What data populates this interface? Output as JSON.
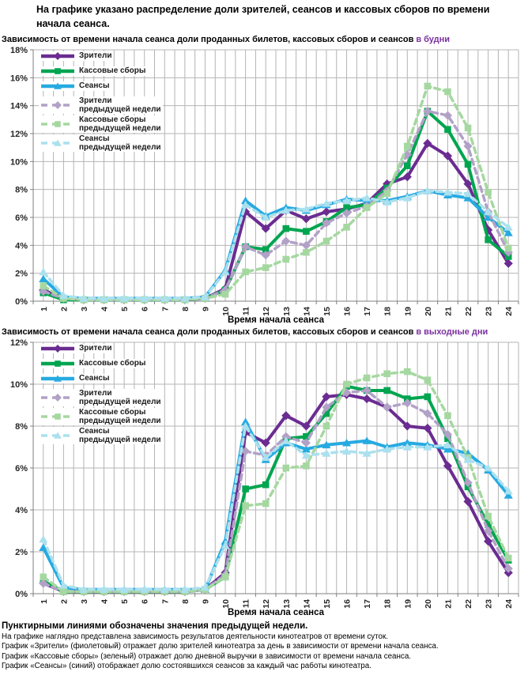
{
  "page_title": "На графике указано распределение доли зрителей, сеансов и кассовых сборов по времени начала сеанса.",
  "accent_color": "#7b2f9e",
  "chart_data": [
    {
      "type": "line",
      "subtitle": "Зависимость от времени начала сеанса доли проданных билетов, кассовых сборов и сеансов",
      "subtitle_highlight": "в будни",
      "xlabel": "Время начала сеанса",
      "ylim": [
        0,
        18
      ],
      "ytick_step": 2,
      "grid": "on",
      "legend_position": "top-left-inside",
      "x": [
        1,
        2,
        3,
        4,
        5,
        6,
        7,
        8,
        9,
        10,
        11,
        12,
        13,
        14,
        15,
        16,
        17,
        18,
        19,
        20,
        21,
        22,
        23,
        24
      ],
      "series": [
        {
          "id": "viewers",
          "label": [
            "Зрители"
          ],
          "color": "#6b2c91",
          "marker": "diamond",
          "dash": false,
          "values": [
            0.8,
            0.2,
            0.1,
            0.1,
            0.1,
            0.1,
            0.1,
            0.1,
            0.2,
            0.9,
            6.4,
            5.2,
            6.5,
            5.9,
            6.4,
            6.6,
            7.0,
            8.4,
            8.9,
            11.3,
            10.4,
            8.4,
            5.1,
            2.7
          ]
        },
        {
          "id": "box-office",
          "label": [
            "Кассовые сборы"
          ],
          "color": "#00a550",
          "marker": "square",
          "dash": false,
          "values": [
            0.6,
            0.1,
            0.1,
            0.1,
            0.1,
            0.1,
            0.1,
            0.1,
            0.2,
            0.8,
            3.9,
            3.7,
            5.2,
            5.0,
            5.7,
            6.7,
            6.9,
            8.1,
            9.7,
            13.6,
            12.3,
            9.8,
            4.4,
            3.2
          ]
        },
        {
          "id": "sessions",
          "label": [
            "Сеансы"
          ],
          "color": "#27aae1",
          "marker": "triangle",
          "dash": false,
          "values": [
            1.6,
            0.3,
            0.2,
            0.2,
            0.2,
            0.2,
            0.2,
            0.2,
            0.3,
            2.2,
            7.2,
            6.1,
            6.7,
            6.5,
            6.9,
            7.3,
            7.2,
            7.2,
            7.5,
            7.9,
            7.6,
            7.4,
            6.0,
            4.9
          ]
        },
        {
          "id": "viewers-prev",
          "label": [
            "Зрители",
            "предыдущей недели"
          ],
          "color": "#b2a1c7",
          "marker": "diamond",
          "dash": true,
          "values": [
            0.7,
            0.2,
            0.1,
            0.1,
            0.1,
            0.1,
            0.1,
            0.1,
            0.2,
            0.8,
            3.9,
            3.3,
            4.3,
            4.0,
            5.6,
            6.3,
            6.8,
            7.9,
            10.5,
            13.6,
            13.3,
            11.1,
            6.4,
            3.5
          ]
        },
        {
          "id": "box-office-prev",
          "label": [
            "Кассовые сборы",
            "предыдущей недели"
          ],
          "color": "#a5d8a0",
          "marker": "square",
          "dash": true,
          "values": [
            1.1,
            0.2,
            0.1,
            0.1,
            0.1,
            0.1,
            0.1,
            0.1,
            0.2,
            0.5,
            2.1,
            2.4,
            3.0,
            3.5,
            4.3,
            5.3,
            6.7,
            7.7,
            11.1,
            15.4,
            15.0,
            12.4,
            7.8,
            3.8
          ]
        },
        {
          "id": "sessions-prev",
          "label": [
            "Сеансы",
            "предыдущей недели"
          ],
          "color": "#abe0ee",
          "marker": "triangle",
          "dash": true,
          "values": [
            2.1,
            0.4,
            0.2,
            0.2,
            0.2,
            0.2,
            0.2,
            0.2,
            0.3,
            2.1,
            6.9,
            6.0,
            6.5,
            6.6,
            7.0,
            7.2,
            7.4,
            7.1,
            7.4,
            7.9,
            7.8,
            7.7,
            6.4,
            5.3
          ]
        }
      ]
    },
    {
      "type": "line",
      "subtitle": "Зависимость от времени начала сеанса доли проданных билетов, кассовых сборов и сеансов",
      "subtitle_highlight": "в выходные дни",
      "xlabel": "Время начала сеанса",
      "ylim": [
        0,
        12
      ],
      "ytick_step": 2,
      "grid": "on",
      "legend_position": "top-left-inside",
      "x": [
        1,
        2,
        3,
        4,
        5,
        6,
        7,
        8,
        9,
        10,
        11,
        12,
        13,
        14,
        15,
        16,
        17,
        18,
        19,
        20,
        21,
        22,
        23,
        24
      ],
      "series": [
        {
          "id": "viewers",
          "label": [
            "Зрители"
          ],
          "color": "#6b2c91",
          "marker": "diamond",
          "dash": false,
          "values": [
            0.5,
            0.1,
            0.1,
            0.1,
            0.1,
            0.1,
            0.1,
            0.1,
            0.2,
            1.0,
            7.7,
            7.2,
            8.5,
            8.0,
            9.4,
            9.5,
            9.3,
            8.9,
            8.0,
            7.9,
            6.1,
            4.4,
            2.5,
            1.0
          ]
        },
        {
          "id": "box-office",
          "label": [
            "Кассовые сборы"
          ],
          "color": "#00a550",
          "marker": "square",
          "dash": false,
          "values": [
            0.6,
            0.1,
            0.1,
            0.1,
            0.1,
            0.1,
            0.1,
            0.1,
            0.2,
            0.8,
            5.0,
            5.2,
            7.4,
            7.5,
            8.6,
            9.9,
            9.7,
            9.7,
            9.3,
            9.4,
            7.4,
            5.1,
            3.3,
            1.6
          ]
        },
        {
          "id": "sessions",
          "label": [
            "Сеансы"
          ],
          "color": "#27aae1",
          "marker": "triangle",
          "dash": false,
          "values": [
            2.2,
            0.3,
            0.2,
            0.2,
            0.2,
            0.2,
            0.2,
            0.2,
            0.2,
            2.5,
            8.2,
            6.4,
            7.2,
            6.9,
            7.1,
            7.2,
            7.3,
            7.0,
            7.2,
            7.1,
            6.9,
            6.7,
            5.9,
            4.7
          ]
        },
        {
          "id": "viewers-prev",
          "label": [
            "Зрители",
            "предыдущей недели"
          ],
          "color": "#b2a1c7",
          "marker": "diamond",
          "dash": true,
          "values": [
            0.5,
            0.1,
            0.1,
            0.1,
            0.1,
            0.1,
            0.1,
            0.1,
            0.2,
            0.9,
            6.8,
            6.6,
            7.5,
            7.2,
            8.9,
            9.6,
            9.7,
            8.9,
            9.1,
            8.6,
            7.6,
            5.3,
            3.0,
            1.2
          ]
        },
        {
          "id": "box-office-prev",
          "label": [
            "Кассовые сборы",
            "предыдущей недели"
          ],
          "color": "#a5d8a0",
          "marker": "square",
          "dash": true,
          "values": [
            0.8,
            0.1,
            0.1,
            0.1,
            0.1,
            0.1,
            0.1,
            0.1,
            0.2,
            0.8,
            4.2,
            4.3,
            6.0,
            6.1,
            8.0,
            10.0,
            10.3,
            10.5,
            10.6,
            10.2,
            8.5,
            6.5,
            3.7,
            1.7
          ]
        },
        {
          "id": "sessions-prev",
          "label": [
            "Сеансы",
            "предыдущей недели"
          ],
          "color": "#abe0ee",
          "marker": "triangle",
          "dash": true,
          "values": [
            2.6,
            0.4,
            0.2,
            0.2,
            0.2,
            0.2,
            0.2,
            0.2,
            0.3,
            2.3,
            8.0,
            6.5,
            7.3,
            6.6,
            6.7,
            6.8,
            6.7,
            6.9,
            7.0,
            7.0,
            7.1,
            6.4,
            6.0,
            4.9
          ]
        }
      ]
    }
  ],
  "footer": {
    "bold": "Пунктирными линиями обозначены значения предыдущей недели.",
    "lines": [
      "На графике наглядно представлена зависимость результатов деятельности кинотеатров от времени суток.",
      "График «Зрители» (фиолетовый) отражает долю зрителей кинотеатра за день в зависимости от времени начала сеанса.",
      "График «Кассовые сборы» (зеленый) отражает долю дневной выручки в зависимости от времени начала сеанса.",
      "График «Сеансы» (синий) отображает долю состоявшихся сеансов за каждый час работы кинотеатра."
    ]
  }
}
